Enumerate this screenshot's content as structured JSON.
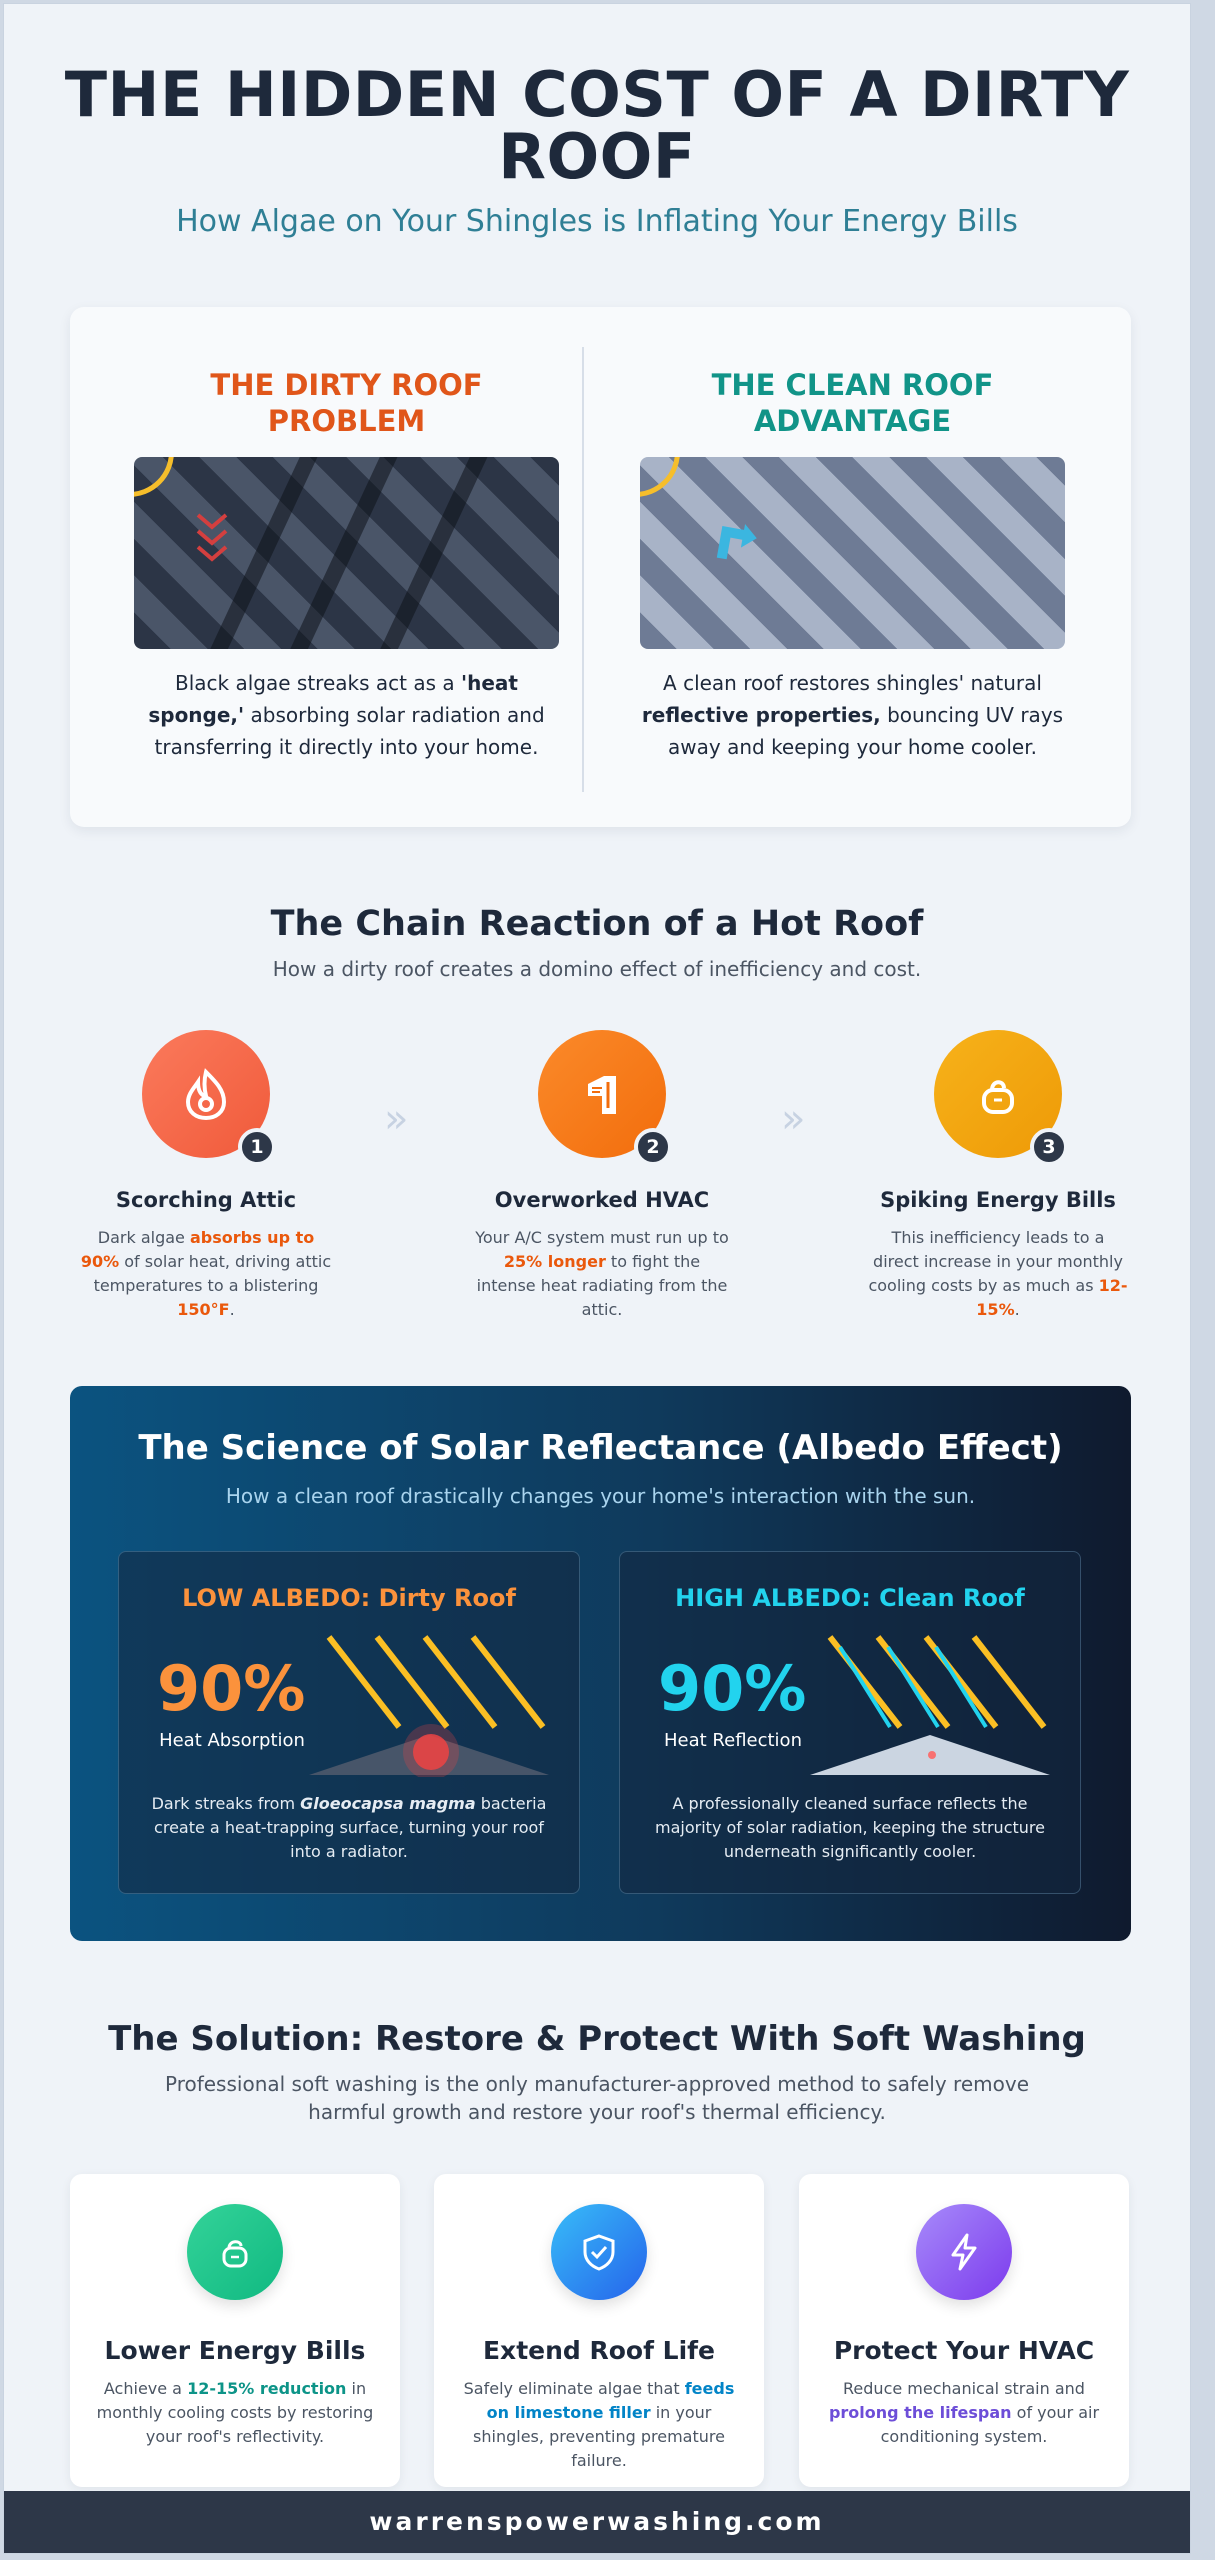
{
  "header": {
    "title": "THE HIDDEN COST OF A DIRTY ROOF",
    "subtitle": "How Algae on Your Shingles is Inflating Your Energy Bills"
  },
  "compare": {
    "dirty": {
      "title": "THE DIRTY ROOF PROBLEM",
      "text_1": "Black algae streaks act as a ",
      "text_bold": "'heat sponge,'",
      "text_2": " absorbing solar radiation and transferring it directly into your home."
    },
    "clean": {
      "title": "THE CLEAN ROOF ADVANTAGE",
      "text_1": "A clean roof restores shingles' natural ",
      "text_bold": "reflective properties,",
      "text_2": " bouncing UV rays away and keeping your home cooler."
    }
  },
  "chain": {
    "title": "The Chain Reaction of a Hot Roof",
    "subtitle": "How a dirty roof creates a domino effect of inefficiency and cost.",
    "steps": [
      {
        "number": "1",
        "title": "Scorching Attic",
        "t1": "Dark algae ",
        "h1": "absorbs up to 90%",
        "t2": " of solar heat, driving attic temperatures to a blistering ",
        "h2": "150°F",
        "t3": ".",
        "color": "#f97352"
      },
      {
        "number": "2",
        "title": "Overworked HVAC",
        "t1": "Your A/C system must run up to ",
        "h1": "25% longer",
        "t2": " to fight the intense heat radiating from the attic.",
        "color": "#f97316"
      },
      {
        "number": "3",
        "title": "Spiking Energy Bills",
        "t1": "This inefficiency leads to a direct increase in your monthly cooling costs by as much as ",
        "h1": "12-15%",
        "t2": ".",
        "color": "#f5a30b"
      }
    ],
    "arrow": "»"
  },
  "science": {
    "title": "The Science of Solar Reflectance (Albedo Effect)",
    "subtitle": "How a clean roof drastically changes your home's interaction with the sun.",
    "low": {
      "title": "LOW ALBEDO: Dirty Roof",
      "value": "90%",
      "label": "Heat Absorption",
      "t1": "Dark streaks from ",
      "italic": "Gloeocapsa magma",
      "t2": " bacteria create a heat-trapping surface, turning your roof into a radiator.",
      "color": "#fb923c"
    },
    "high": {
      "title": "HIGH ALBEDO: Clean Roof",
      "value": "90%",
      "label": "Heat Reflection",
      "text": "A professionally cleaned surface reflects the majority of solar radiation, keeping the structure underneath significantly cooler.",
      "color": "#22d3ee"
    }
  },
  "solution": {
    "title": "The Solution: Restore & Protect With Soft Washing",
    "subtitle": "Professional soft washing is the only manufacturer-approved method to safely remove harmful growth and restore your roof's thermal efficiency.",
    "cards": [
      {
        "icon": "piggy-bank-icon",
        "title": "Lower Energy Bills",
        "t1": "Achieve a ",
        "h": "12-15% reduction",
        "t2": " in monthly cooling costs by restoring your roof's reflectivity.",
        "color": "#0d9488"
      },
      {
        "icon": "shield-check-icon",
        "title": "Extend Roof Life",
        "t1": "Safely eliminate algae that ",
        "h": "feeds on limestone filler",
        "t2": " in your shingles, preventing premature failure.",
        "color": "#0284c7"
      },
      {
        "icon": "lightning-icon",
        "title": "Protect Your HVAC",
        "t1": "Reduce mechanical strain and ",
        "h": "prolong the lifespan",
        "t2": " of your air conditioning system.",
        "color": "#6d4ed8"
      }
    ]
  },
  "footer": {
    "website": "warrenspowerwashing.com"
  }
}
